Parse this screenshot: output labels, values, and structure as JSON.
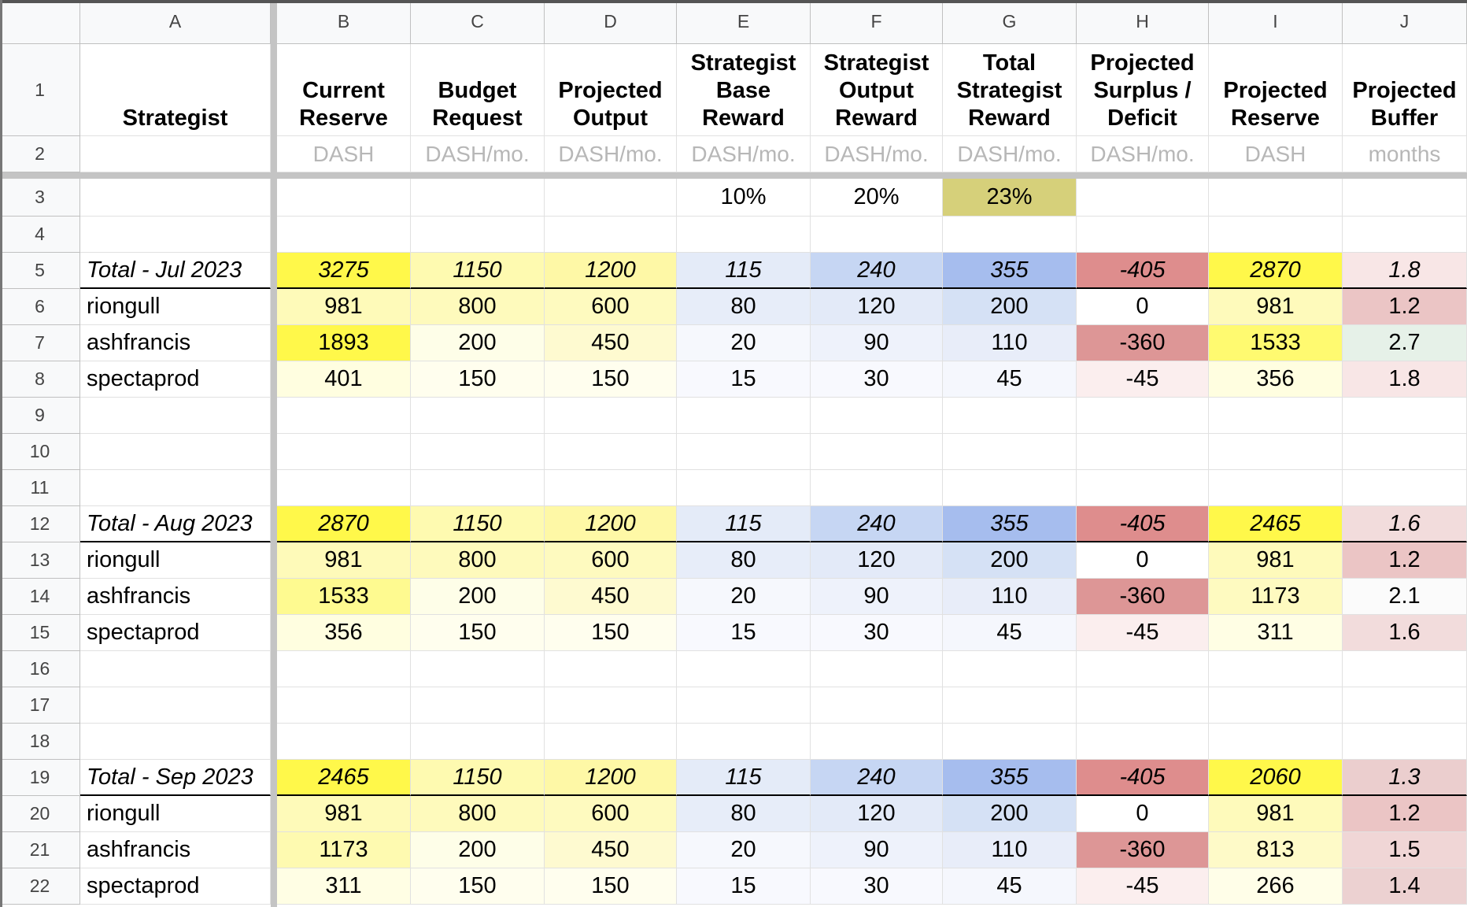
{
  "columns": [
    "A",
    "B",
    "C",
    "D",
    "E",
    "F",
    "G",
    "H",
    "I",
    "J"
  ],
  "headers": {
    "A": "Strategist",
    "B": "Current\nReserve",
    "C": "Budget\nRequest",
    "D": "Projected\nOutput",
    "E": "Strategist\nBase\nReward",
    "F": "Strategist\nOutput\nReward",
    "G": "Total\nStrategist\nReward",
    "H": "Projected\nSurplus /\nDeficit",
    "I": "Projected\nReserve",
    "J": "Projected\nBuffer"
  },
  "units": {
    "B": "DASH",
    "C": "DASH/mo.",
    "D": "DASH/mo.",
    "E": "DASH/mo.",
    "F": "DASH/mo.",
    "G": "DASH/mo.",
    "H": "DASH/mo.",
    "I": "DASH",
    "J": "months"
  },
  "rates": {
    "E": "10%",
    "F": "20%",
    "G": "23%"
  },
  "rows": {
    "5": {
      "A": "Total - Jul 2023",
      "B": "3275",
      "C": "1150",
      "D": "1200",
      "E": "115",
      "F": "240",
      "G": "355",
      "H": "-405",
      "I": "2870",
      "J": "1.8"
    },
    "6": {
      "A": "riongull",
      "B": "981",
      "C": "800",
      "D": "600",
      "E": "80",
      "F": "120",
      "G": "200",
      "H": "0",
      "I": "981",
      "J": "1.2"
    },
    "7": {
      "A": "ashfrancis",
      "B": "1893",
      "C": "200",
      "D": "450",
      "E": "20",
      "F": "90",
      "G": "110",
      "H": "-360",
      "I": "1533",
      "J": "2.7"
    },
    "8": {
      "A": "spectaprod",
      "B": "401",
      "C": "150",
      "D": "150",
      "E": "15",
      "F": "30",
      "G": "45",
      "H": "-45",
      "I": "356",
      "J": "1.8"
    },
    "12": {
      "A": "Total - Aug 2023",
      "B": "2870",
      "C": "1150",
      "D": "1200",
      "E": "115",
      "F": "240",
      "G": "355",
      "H": "-405",
      "I": "2465",
      "J": "1.6"
    },
    "13": {
      "A": "riongull",
      "B": "981",
      "C": "800",
      "D": "600",
      "E": "80",
      "F": "120",
      "G": "200",
      "H": "0",
      "I": "981",
      "J": "1.2"
    },
    "14": {
      "A": "ashfrancis",
      "B": "1533",
      "C": "200",
      "D": "450",
      "E": "20",
      "F": "90",
      "G": "110",
      "H": "-360",
      "I": "1173",
      "J": "2.1"
    },
    "15": {
      "A": "spectaprod",
      "B": "356",
      "C": "150",
      "D": "150",
      "E": "15",
      "F": "30",
      "G": "45",
      "H": "-45",
      "I": "311",
      "J": "1.6"
    },
    "19": {
      "A": "Total - Sep 2023",
      "B": "2465",
      "C": "1150",
      "D": "1200",
      "E": "115",
      "F": "240",
      "G": "355",
      "H": "-405",
      "I": "2060",
      "J": "1.3"
    },
    "20": {
      "A": "riongull",
      "B": "981",
      "C": "800",
      "D": "600",
      "E": "80",
      "F": "120",
      "G": "200",
      "H": "0",
      "I": "981",
      "J": "1.2"
    },
    "21": {
      "A": "ashfrancis",
      "B": "1173",
      "C": "200",
      "D": "450",
      "E": "20",
      "F": "90",
      "G": "110",
      "H": "-360",
      "I": "813",
      "J": "1.5"
    },
    "22": {
      "A": "spectaprod",
      "B": "311",
      "C": "150",
      "D": "150",
      "E": "15",
      "F": "30",
      "G": "45",
      "H": "-45",
      "I": "266",
      "J": "1.4"
    }
  },
  "fills": {
    "3": {
      "G": "#d6d07a"
    },
    "5": {
      "B": "#fff84a",
      "C": "#fefab0",
      "D": "#fef8a6",
      "E": "#e4ebf8",
      "F": "#c6d6f3",
      "G": "#a6bdee",
      "H": "#de8d8d",
      "I": "#fff84a",
      "J": "#f8e6e6"
    },
    "6": {
      "B": "#fefab9",
      "C": "#fefabc",
      "D": "#fefabf",
      "E": "#e7edf9",
      "F": "#e3eaf8",
      "G": "#d5e1f5",
      "H": "#ffffff",
      "I": "#fefabb",
      "J": "#ebc5c5"
    },
    "7": {
      "B": "#fff84a",
      "C": "#fefee8",
      "D": "#fefad0",
      "E": "#f6f8fd",
      "F": "#eef2fb",
      "G": "#e8edf9",
      "H": "#dd9696",
      "I": "#fffa70",
      "J": "#e6f1e8"
    },
    "8": {
      "B": "#fffee0",
      "C": "#fffeee",
      "D": "#fffeee",
      "E": "#f8f9fe",
      "F": "#f8f9fe",
      "G": "#f5f7fd",
      "H": "#fbeeee",
      "I": "#fffee0",
      "J": "#f8e6e6"
    },
    "12": {
      "B": "#fff84a",
      "C": "#fefab0",
      "D": "#fef8a6",
      "E": "#e4ebf8",
      "F": "#c6d6f3",
      "G": "#a6bdee",
      "H": "#de8d8d",
      "I": "#fff84a",
      "J": "#f2dcdc"
    },
    "13": {
      "B": "#fefab9",
      "C": "#fefabc",
      "D": "#fefabf",
      "E": "#e7edf9",
      "F": "#e3eaf8",
      "G": "#d5e1f5",
      "H": "#ffffff",
      "I": "#fefabb",
      "J": "#ebc5c5"
    },
    "14": {
      "B": "#fefa90",
      "C": "#fefee8",
      "D": "#fefad0",
      "E": "#f6f8fd",
      "F": "#eef2fb",
      "G": "#e8edf9",
      "H": "#dd9696",
      "I": "#fefac0",
      "J": "#fbfbfb"
    },
    "15": {
      "B": "#fffee0",
      "C": "#fffeee",
      "D": "#fffeee",
      "E": "#f8f9fe",
      "F": "#f8f9fe",
      "G": "#f5f7fd",
      "H": "#fbeeee",
      "I": "#fffee4",
      "J": "#f2dcdc"
    },
    "19": {
      "B": "#fff84a",
      "C": "#fefab0",
      "D": "#fef8a6",
      "E": "#e4ebf8",
      "F": "#c6d6f3",
      "G": "#a6bdee",
      "H": "#de8d8d",
      "I": "#fff84a",
      "J": "#ebcece"
    },
    "20": {
      "B": "#fefab9",
      "C": "#fefabc",
      "D": "#fefabf",
      "E": "#e7edf9",
      "F": "#e3eaf8",
      "G": "#d5e1f5",
      "H": "#ffffff",
      "I": "#fefabb",
      "J": "#ebc5c5"
    },
    "21": {
      "B": "#fefab0",
      "C": "#fefee8",
      "D": "#fefad0",
      "E": "#f6f8fd",
      "F": "#eef2fb",
      "G": "#e8edf9",
      "H": "#dd9696",
      "I": "#fefac8",
      "J": "#f0d6d6"
    },
    "22": {
      "B": "#fffee4",
      "C": "#fffeee",
      "D": "#fffeee",
      "E": "#f8f9fe",
      "F": "#f8f9fe",
      "G": "#f5f7fd",
      "H": "#fbeeee",
      "I": "#fffee8",
      "J": "#ecd1d1"
    }
  }
}
